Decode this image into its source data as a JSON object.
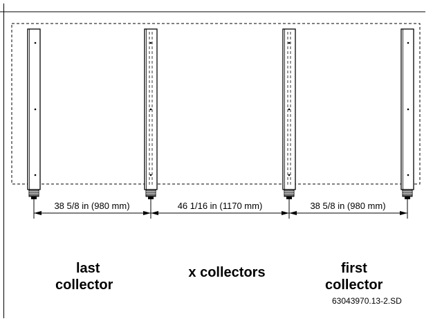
{
  "dimensions": [
    "38 5/8 in (980 mm)",
    "46 1/16 in (1170 mm)",
    "38 5/8 in (980 mm)"
  ],
  "labels": {
    "last_line1": "last",
    "last_line2": "collector",
    "middle": "x collectors",
    "first_line1": "first",
    "first_line2": "collector"
  },
  "figure_code": "63043970.13-2.SD"
}
